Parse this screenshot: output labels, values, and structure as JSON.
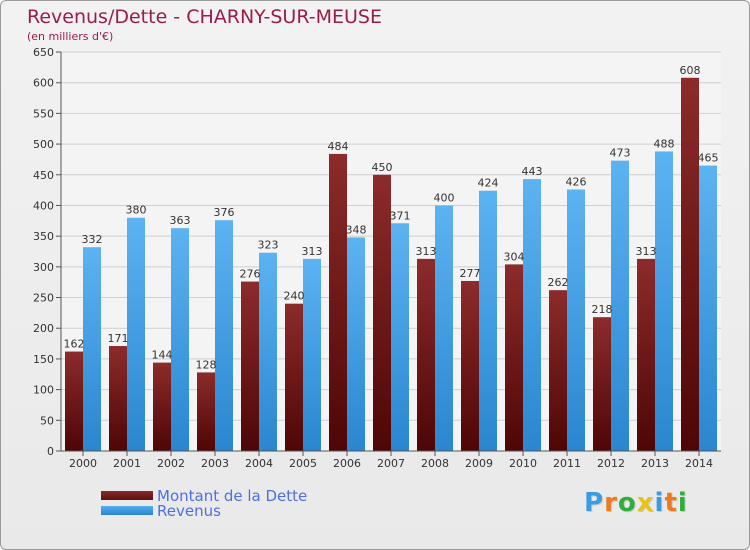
{
  "title": "Revenus/Dette - CHARNY-SUR-MEUSE",
  "subtitle": "(en milliers d'€)",
  "chart_data": {
    "type": "bar",
    "categories": [
      "2000",
      "2001",
      "2002",
      "2003",
      "2004",
      "2005",
      "2006",
      "2007",
      "2008",
      "2009",
      "2010",
      "2011",
      "2012",
      "2013",
      "2014"
    ],
    "series": [
      {
        "name": "Montant de la Dette",
        "color": "#7a1c1c",
        "values": [
          162,
          171,
          144,
          128,
          276,
          240,
          484,
          450,
          313,
          277,
          304,
          262,
          218,
          313,
          608
        ]
      },
      {
        "name": "Revenus",
        "color": "#3d9be0",
        "values": [
          332,
          380,
          363,
          376,
          323,
          313,
          348,
          371,
          400,
          424,
          443,
          426,
          473,
          488,
          465
        ]
      }
    ],
    "yticks": [
      0,
      50,
      100,
      150,
      200,
      250,
      300,
      350,
      400,
      450,
      500,
      550,
      600,
      650
    ],
    "ylim": [
      0,
      650
    ],
    "grid": true,
    "legend_position": "bottom-left"
  },
  "legend": {
    "dette_label": "Montant de la Dette",
    "revenus_label": "Revenus"
  },
  "logo": {
    "letters": [
      "P",
      "r",
      "o",
      "x",
      "i",
      "t",
      "i"
    ],
    "colors": [
      "#3a9be0",
      "#f07a1a",
      "#2fae3a",
      "#e8c21a",
      "#3a9be0",
      "#f07a1a",
      "#2fae3a"
    ]
  }
}
